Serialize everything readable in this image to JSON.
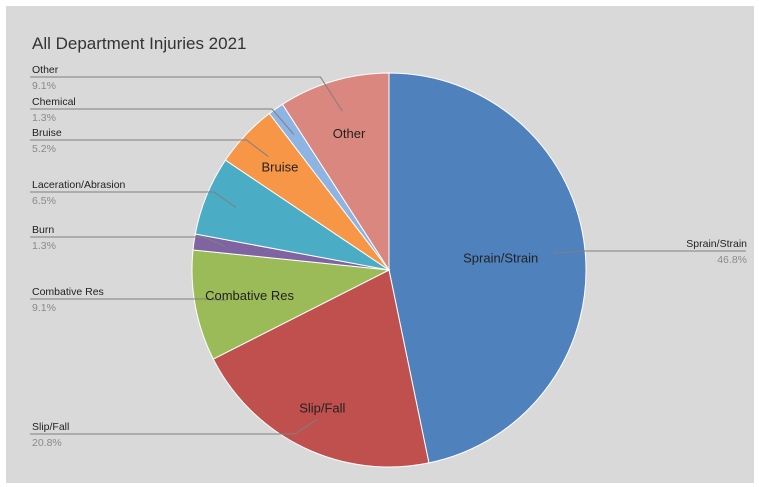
{
  "chart_data": {
    "type": "pie",
    "title": "All Department Injuries 2021",
    "slices": [
      {
        "label": "Sprain/Strain",
        "value": 46.8,
        "percent_label": "46.8%",
        "inner_label": "Sprain/Strain",
        "color": "#4f81bd"
      },
      {
        "label": "Slip/Fall",
        "value": 20.8,
        "percent_label": "20.8%",
        "inner_label": "Slip/Fall",
        "color": "#c0504d"
      },
      {
        "label": "Combative Res",
        "value": 9.1,
        "percent_label": "9.1%",
        "inner_label": "Combative Res",
        "color": "#9bbb59"
      },
      {
        "label": "Burn",
        "value": 1.3,
        "percent_label": "1.3%",
        "inner_label": "",
        "color": "#8064a2"
      },
      {
        "label": "Laceration/Abrasion",
        "value": 6.5,
        "percent_label": "6.5%",
        "inner_label": "",
        "color": "#4bacc6"
      },
      {
        "label": "Bruise",
        "value": 5.2,
        "percent_label": "5.2%",
        "inner_label": "Bruise",
        "color": "#f79646"
      },
      {
        "label": "Chemical",
        "value": 1.3,
        "percent_label": "1.3%",
        "inner_label": "",
        "color": "#8eb4e3"
      },
      {
        "label": "Other",
        "value": 9.1,
        "percent_label": "9.1%",
        "inner_label": "Other",
        "color": "#d9877f"
      }
    ],
    "legend": "none",
    "background": "#d9d9d9"
  }
}
